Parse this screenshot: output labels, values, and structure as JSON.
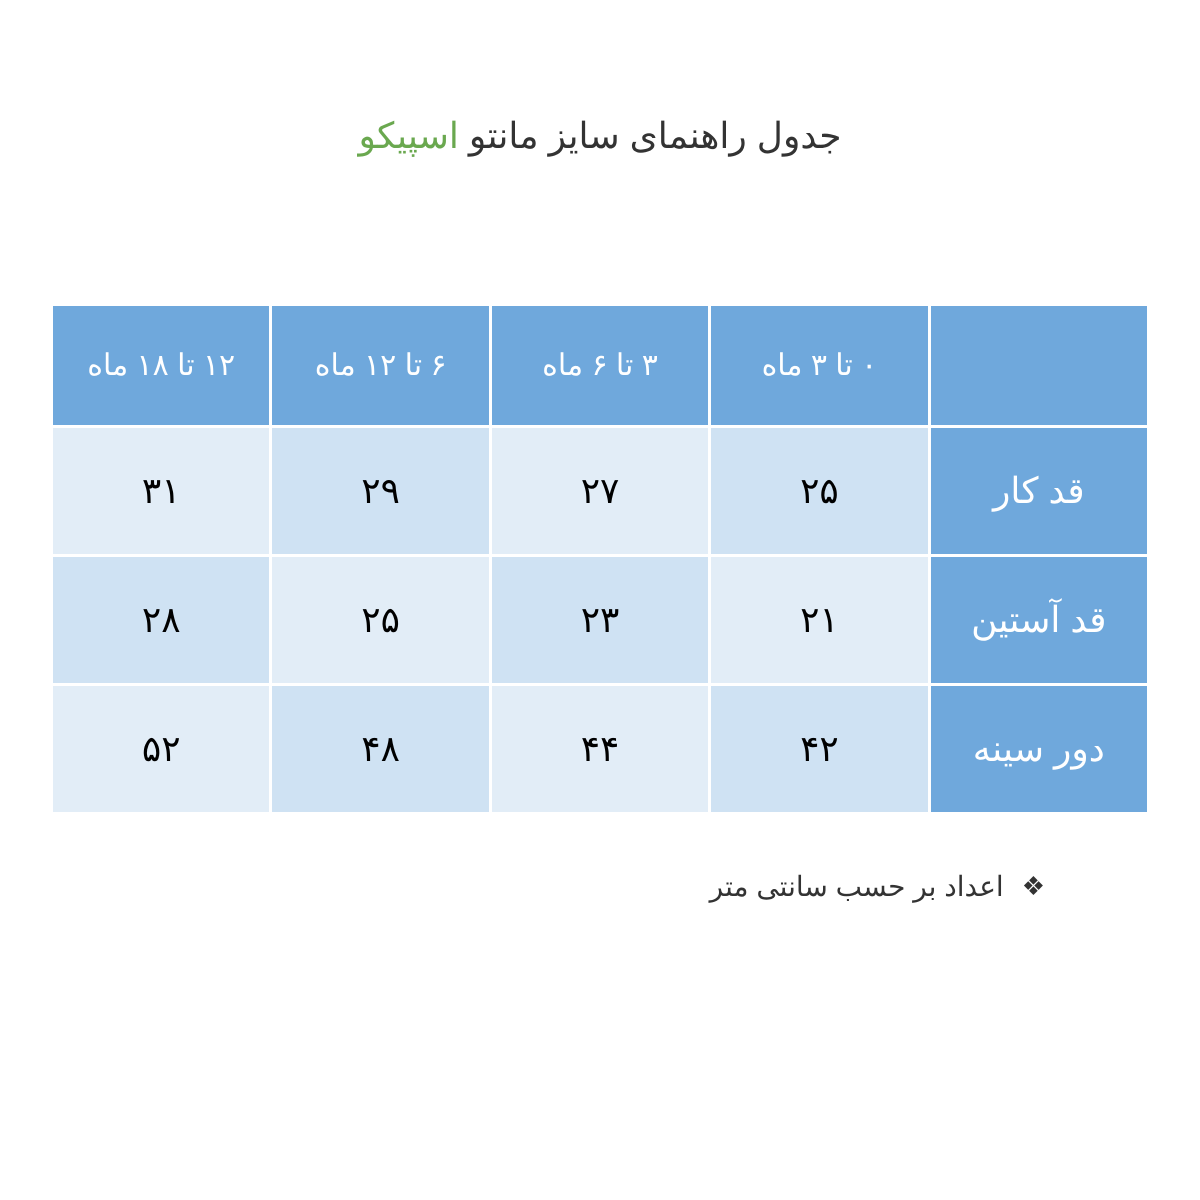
{
  "title": {
    "main": "جدول راهنمای سایز مانتو ",
    "brand": "اسپیکو",
    "main_color": "#333333",
    "brand_color": "#6aa84f",
    "fontsize": 36
  },
  "table": {
    "type": "table",
    "header_bg": "#6fa8dc",
    "header_fg": "#ffffff",
    "rowlabel_bg": "#6fa8dc",
    "rowlabel_fg": "#ffffff",
    "cell_bg_a": "#cfe2f3",
    "cell_bg_b": "#e2edf7",
    "cell_fg": "#000000",
    "border_color": "#ffffff",
    "header_fontsize": 30,
    "cell_fontsize": 36,
    "columns": [
      "",
      "۰ تا ۳ ماه",
      "۳ تا ۶ ماه",
      "۶ تا ۱۲ ماه",
      "۱۲ تا ۱۸ ماه"
    ],
    "rows": [
      {
        "label": "قد کار",
        "cells": [
          "۲۵",
          "۲۷",
          "۲۹",
          "۳۱"
        ],
        "alt_pattern": [
          0,
          1,
          0,
          1
        ]
      },
      {
        "label": "قد آستین",
        "cells": [
          "۲۱",
          "۲۳",
          "۲۵",
          "۲۸"
        ],
        "alt_pattern": [
          1,
          0,
          1,
          0
        ]
      },
      {
        "label": "دور سینه",
        "cells": [
          "۴۲",
          "۴۴",
          "۴۸",
          "۵۲"
        ],
        "alt_pattern": [
          0,
          1,
          0,
          1
        ]
      }
    ]
  },
  "footnote": {
    "text": "اعداد بر حسب سانتی متر",
    "icon": "❖",
    "color": "#333333",
    "fontsize": 28
  }
}
